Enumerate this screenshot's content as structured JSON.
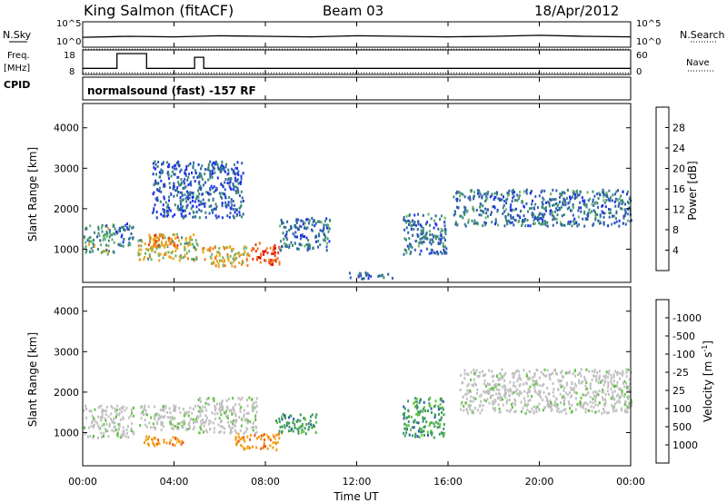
{
  "header": {
    "station": "King Salmon (fitACF)",
    "beam": "Beam 03",
    "date": "18/Apr/2012",
    "program": "normalsound (fast) -157 RF"
  },
  "panel_labels": {
    "nsky": "N.Sky",
    "nsearch": "N.Search",
    "freq_line1": "Freq.",
    "freq_line2": "[MHz]",
    "nave": "Nave",
    "cpid": "CPID"
  },
  "colors": {
    "power": [
      "#1c2cf0",
      "#2f5bb0",
      "#3a8a78",
      "#6bb26a",
      "#e8a51a",
      "#f07a1a",
      "#ea3a14",
      "#e01010"
    ],
    "velocity": [
      "#e31212",
      "#ef5a0f",
      "#f39a14",
      "#f5bf3a",
      "#c8c8c8",
      "#5fc43e",
      "#3e9a5e",
      "#2d55b8",
      "#1f2ccc"
    ],
    "ground_scatter": "#c0c0c0"
  },
  "chart_data": [
    {
      "type": "line",
      "name": "nsky-nsearch",
      "x": [
        "00:00",
        "04:00",
        "08:00",
        "12:00",
        "16:00",
        "20:00",
        "00:00"
      ],
      "ylim_left_label": [
        "10^0",
        "10^5"
      ],
      "ylim_right_label": [
        "10^0",
        "10^5"
      ],
      "series": [
        {
          "name": "N.Sky",
          "style": "solid",
          "x": [
            0,
            2,
            4,
            6,
            8,
            10,
            12,
            14,
            16,
            18,
            20,
            22,
            24
          ],
          "y": [
            2.3,
            2.5,
            2.4,
            2.6,
            2.5,
            2.4,
            2.6,
            2.5,
            2.4,
            2.5,
            2.7,
            2.5,
            2.4
          ]
        },
        {
          "name": "N.Search",
          "style": "dotted",
          "x": [
            0,
            4,
            8,
            12,
            16,
            20,
            24
          ],
          "y": [
            0.5,
            0.5,
            0.5,
            0.5,
            0.5,
            0.5,
            0.5
          ]
        }
      ]
    },
    {
      "type": "line",
      "name": "freq-nave",
      "ylim_left": [
        8,
        18
      ],
      "ylim_right": [
        0,
        60
      ],
      "left_ticks": [
        "8",
        "18"
      ],
      "right_ticks": [
        "0",
        "60"
      ],
      "series": [
        {
          "name": "Freq.",
          "style": "solid",
          "x": [
            0,
            1.5,
            1.5,
            2.8,
            2.8,
            4.9,
            4.9,
            5.3,
            5.3,
            24
          ],
          "y": [
            10.5,
            10.5,
            16.5,
            16.5,
            10.5,
            10.5,
            15,
            15,
            10.5,
            10.5
          ]
        },
        {
          "name": "Nave",
          "style": "dotted",
          "x": [
            0,
            24
          ],
          "y": [
            9,
            9
          ]
        }
      ]
    },
    {
      "type": "heatmap",
      "name": "power",
      "xlabel": "",
      "ylabel": "Slant Range [km]",
      "x_ticks": [
        "00:00",
        "04:00",
        "08:00",
        "12:00",
        "16:00",
        "20:00",
        "00:00"
      ],
      "xlim_hours": [
        0,
        24
      ],
      "ylim": [
        180,
        4600
      ],
      "y_ticks": [
        1000,
        2000,
        3000,
        4000
      ],
      "colorbar_label": "Power [dB]",
      "colorbar_ticks": [
        "4",
        "8",
        "12",
        "16",
        "20",
        "24",
        "28"
      ],
      "colorbar_range": [
        0,
        30
      ],
      "regions": [
        {
          "t": [
            0,
            1.4
          ],
          "r": [
            900,
            1650
          ],
          "level": 12
        },
        {
          "t": [
            1.4,
            2.2
          ],
          "r": [
            1100,
            1700
          ],
          "level": 8
        },
        {
          "t": [
            2.4,
            5.0
          ],
          "r": [
            750,
            1400
          ],
          "level": 16
        },
        {
          "t": [
            2.8,
            4.2
          ],
          "r": [
            1100,
            1400
          ],
          "level": 22
        },
        {
          "t": [
            5.2,
            7.3
          ],
          "r": [
            600,
            1100
          ],
          "level": 18
        },
        {
          "t": [
            7.3,
            8.6
          ],
          "r": [
            650,
            1200
          ],
          "level": 26
        },
        {
          "t": [
            8.6,
            10.8
          ],
          "r": [
            1000,
            1800
          ],
          "level": 8
        },
        {
          "t": [
            3.0,
            7.0
          ],
          "r": [
            1800,
            3200
          ],
          "level": 6
        },
        {
          "t": [
            11.6,
            13.6
          ],
          "r": [
            300,
            450
          ],
          "level": 6
        },
        {
          "t": [
            14.0,
            15.9
          ],
          "r": [
            900,
            1900
          ],
          "level": 8
        },
        {
          "t": [
            16.2,
            24.0
          ],
          "r": [
            1600,
            2500
          ],
          "level": 8
        }
      ]
    },
    {
      "type": "heatmap",
      "name": "velocity",
      "xlabel": "Time UT",
      "ylabel": "Slant Range [km]",
      "x_ticks": [
        "00:00",
        "04:00",
        "08:00",
        "12:00",
        "16:00",
        "20:00",
        "00:00"
      ],
      "xlim_hours": [
        0,
        24
      ],
      "ylim": [
        180,
        4600
      ],
      "y_ticks": [
        1000,
        2000,
        3000,
        4000
      ],
      "colorbar_label": "Velocity [m s^-1]",
      "colorbar_ticks": [
        "-1000",
        "-500",
        "-100",
        "-25",
        "25",
        "100",
        "500",
        "1000"
      ],
      "regions": [
        {
          "t": [
            0,
            2.2
          ],
          "r": [
            900,
            1700
          ],
          "kind": "ground"
        },
        {
          "t": [
            2.4,
            5.0
          ],
          "r": [
            1100,
            1700
          ],
          "kind": "ground"
        },
        {
          "t": [
            2.6,
            4.6
          ],
          "r": [
            700,
            950
          ],
          "velocity": -300
        },
        {
          "t": [
            5.0,
            7.6
          ],
          "r": [
            1000,
            1900
          ],
          "kind": "ground"
        },
        {
          "t": [
            6.6,
            8.6
          ],
          "r": [
            600,
            1000
          ],
          "velocity": -300
        },
        {
          "t": [
            8.4,
            10.2
          ],
          "r": [
            1000,
            1500
          ],
          "velocity": 100
        },
        {
          "t": [
            14.0,
            15.8
          ],
          "r": [
            900,
            1900
          ],
          "velocity": 300
        },
        {
          "t": [
            16.5,
            24.0
          ],
          "r": [
            1500,
            2600
          ],
          "kind": "ground"
        }
      ]
    }
  ],
  "axis_labels": {
    "slant_range": "Slant Range [km]",
    "power_title": "Power [dB]",
    "velocity_title": "Velocity",
    "velocity_unit": "[m s",
    "velocity_sup": "-1",
    "velocity_close": "]",
    "time": "Time UT"
  }
}
